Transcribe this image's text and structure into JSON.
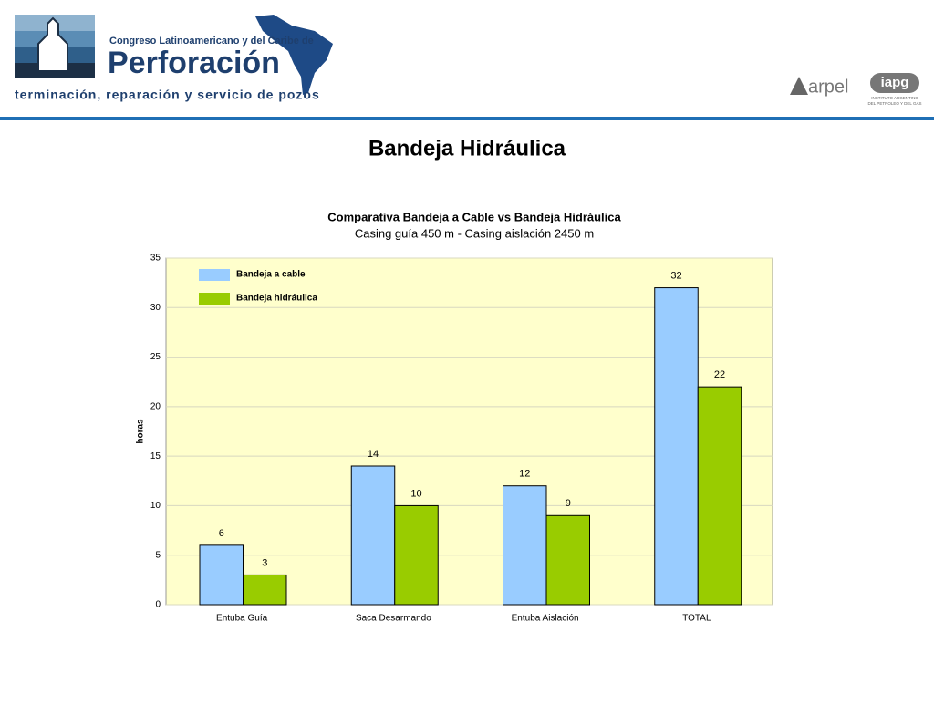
{
  "header": {
    "line1": "Congreso Latinoamericano y del Caribe de",
    "line2": "Perforación",
    "line3": "terminación, reparación y servicio de pozos",
    "logo2": "arpel",
    "logo3": "iapg",
    "logo3_sub1": "INSTITUTO ARGENTINO",
    "logo3_sub2": "DEL PETROLEO Y DEL GAS"
  },
  "slide_title": "Bandeja Hidráulica",
  "chart_data": {
    "type": "bar",
    "title": "Comparativa Bandeja a Cable vs Bandeja Hidráulica",
    "subtitle": "Casing guía 450 m - Casing aislación 2450 m",
    "y_label": "horas",
    "categories": [
      "Entuba Guía",
      "Saca Desarmando",
      "Entuba Aislación",
      "TOTAL"
    ],
    "series": [
      {
        "name": "Bandeja a cable",
        "color": "#99ccff",
        "values": [
          6,
          14,
          12,
          32
        ]
      },
      {
        "name": "Bandeja hidráulica",
        "color": "#99cc00",
        "values": [
          3,
          10,
          9,
          22
        ]
      }
    ],
    "ylim": [
      0,
      35
    ],
    "yticks": [
      0,
      5,
      10,
      15,
      20,
      25,
      30,
      35
    ],
    "grid": true,
    "legend": "top-left"
  }
}
